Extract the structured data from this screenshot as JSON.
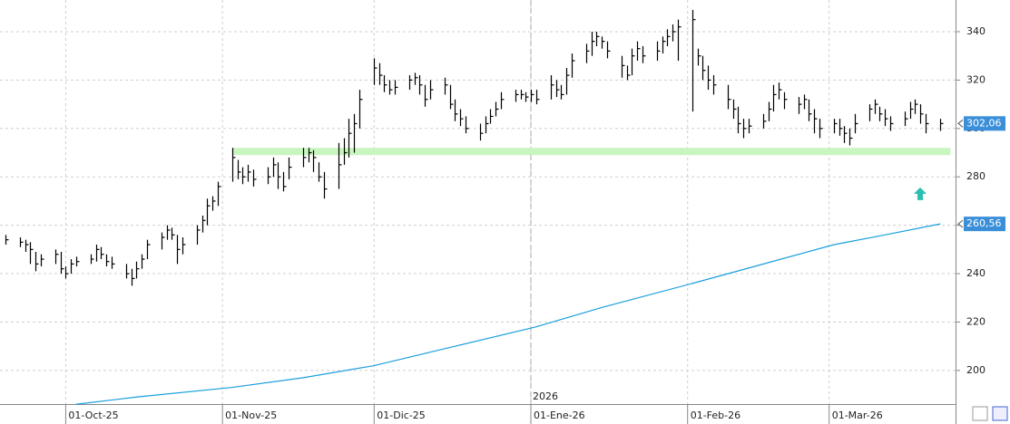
{
  "chart_data": {
    "type": "hlc",
    "xlim": [
      "2025-09-18",
      "2026-03-26"
    ],
    "ylim": [
      186.1,
      353.1
    ],
    "yticks": [
      200,
      220,
      240,
      260,
      280,
      300,
      320,
      340
    ],
    "grid": true,
    "xticks": [
      {
        "value": "2025-10-01",
        "label": "01-Oct-25"
      },
      {
        "value": "2025-11-01",
        "label": "01-Nov-25"
      },
      {
        "value": "2025-12-01",
        "label": "01-Dic-25"
      },
      {
        "value": "2026-01-01",
        "label": "01-Ene-26"
      },
      {
        "value": "2026-02-01",
        "label": "01-Feb-26"
      },
      {
        "value": "2026-03-01",
        "label": "01-Mar-26"
      }
    ],
    "year_marker": {
      "x": "2026-01-01",
      "label": "2026"
    },
    "band": {
      "from": "2025-11-03",
      "to": "2026-03-25",
      "low": 289,
      "high": 292,
      "color": "#c8f5c0"
    },
    "arrow": {
      "x": "2026-03-19",
      "y": 273,
      "color": "#2bbfb0"
    },
    "x": [
      "2025-09-19",
      "2025-09-22",
      "2025-09-23",
      "2025-09-24",
      "2025-09-25",
      "2025-09-26",
      "2025-09-29",
      "2025-09-30",
      "2025-10-01",
      "2025-10-02",
      "2025-10-03",
      "2025-10-06",
      "2025-10-07",
      "2025-10-08",
      "2025-10-09",
      "2025-10-10",
      "2025-10-13",
      "2025-10-14",
      "2025-10-15",
      "2025-10-16",
      "2025-10-17",
      "2025-10-20",
      "2025-10-21",
      "2025-10-22",
      "2025-10-23",
      "2025-10-24",
      "2025-10-27",
      "2025-10-28",
      "2025-10-29",
      "2025-10-30",
      "2025-10-31",
      "2025-11-03",
      "2025-11-04",
      "2025-11-05",
      "2025-11-06",
      "2025-11-07",
      "2025-11-10",
      "2025-11-11",
      "2025-11-12",
      "2025-11-13",
      "2025-11-14",
      "2025-11-17",
      "2025-11-18",
      "2025-11-19",
      "2025-11-20",
      "2025-11-21",
      "2025-11-24",
      "2025-11-25",
      "2025-11-26",
      "2025-11-27",
      "2025-11-28",
      "2025-12-01",
      "2025-12-02",
      "2025-12-03",
      "2025-12-04",
      "2025-12-05",
      "2025-12-08",
      "2025-12-09",
      "2025-12-10",
      "2025-12-11",
      "2025-12-12",
      "2025-12-15",
      "2025-12-16",
      "2025-12-17",
      "2025-12-18",
      "2025-12-19",
      "2025-12-22",
      "2025-12-23",
      "2025-12-24",
      "2025-12-25",
      "2025-12-26",
      "2025-12-29",
      "2025-12-30",
      "2025-12-31",
      "2026-01-01",
      "2026-01-02",
      "2026-01-05",
      "2026-01-06",
      "2026-01-07",
      "2026-01-08",
      "2026-01-09",
      "2026-01-12",
      "2026-01-13",
      "2026-01-14",
      "2026-01-15",
      "2026-01-16",
      "2026-01-19",
      "2026-01-20",
      "2026-01-21",
      "2026-01-22",
      "2026-01-23",
      "2026-01-26",
      "2026-01-27",
      "2026-01-28",
      "2026-01-29",
      "2026-01-30",
      "2026-02-02",
      "2026-02-03",
      "2026-02-04",
      "2026-02-05",
      "2026-02-06",
      "2026-02-09",
      "2026-02-10",
      "2026-02-11",
      "2026-02-12",
      "2026-02-13",
      "2026-02-16",
      "2026-02-17",
      "2026-02-18",
      "2026-02-19",
      "2026-02-20",
      "2026-02-23",
      "2026-02-24",
      "2026-02-25",
      "2026-02-26",
      "2026-02-27",
      "2026-03-02",
      "2026-03-03",
      "2026-03-04",
      "2026-03-05",
      "2026-03-06",
      "2026-03-09",
      "2026-03-10",
      "2026-03-11",
      "2026-03-12",
      "2026-03-13",
      "2026-03-16",
      "2026-03-17",
      "2026-03-18",
      "2026-03-19",
      "2026-03-20",
      "2026-03-23"
    ],
    "series": [
      {
        "kind": "hlc",
        "color": "#000000",
        "last_label": "302,06",
        "label_color": "#3a8fd8",
        "high": [
          256,
          255,
          254,
          253,
          249,
          248,
          250,
          249,
          243,
          246,
          247,
          248,
          252,
          251,
          248,
          247,
          244,
          242,
          245,
          248,
          254,
          257,
          260,
          259,
          256,
          255,
          260,
          264,
          271,
          272,
          278,
          292,
          287,
          284,
          285,
          283,
          284,
          288,
          286,
          282,
          288,
          292,
          292,
          291,
          286,
          282,
          294,
          296,
          304,
          306,
          316,
          329,
          327,
          322,
          320,
          320,
          322,
          323,
          322,
          318,
          320,
          321,
          318,
          312,
          308,
          305,
          302,
          305,
          308,
          311,
          315,
          316,
          316,
          315,
          316,
          316,
          322,
          320,
          318,
          325,
          331,
          335,
          340,
          340,
          338,
          336,
          330,
          326,
          333,
          336,
          334,
          336,
          338,
          341,
          343,
          345,
          349,
          333,
          330,
          326,
          322,
          318,
          312,
          309,
          304,
          304,
          306,
          311,
          318,
          319,
          315,
          313,
          314,
          312,
          308,
          304,
          304,
          304,
          301,
          300,
          306,
          310,
          312,
          309,
          308,
          305,
          307,
          311,
          312,
          310,
          306,
          304
        ],
        "low": [
          252,
          251,
          249,
          244,
          241,
          243,
          244,
          240,
          238,
          240,
          243,
          244,
          245,
          246,
          243,
          242,
          238,
          235,
          238,
          242,
          246,
          250,
          254,
          254,
          244,
          248,
          252,
          257,
          260,
          266,
          268,
          278,
          279,
          277,
          278,
          276,
          277,
          280,
          275,
          274,
          279,
          284,
          286,
          282,
          278,
          271,
          275,
          285,
          288,
          290,
          300,
          318,
          318,
          315,
          314,
          314,
          316,
          318,
          314,
          309,
          312,
          314,
          308,
          303,
          301,
          298,
          295,
          298,
          302,
          305,
          308,
          311,
          312,
          311,
          311,
          310,
          312,
          313,
          312,
          314,
          321,
          327,
          330,
          334,
          333,
          329,
          321,
          320,
          322,
          328,
          327,
          328,
          331,
          334,
          336,
          328,
          307,
          326,
          320,
          316,
          314,
          308,
          304,
          298,
          296,
          298,
          300,
          303,
          307,
          312,
          308,
          306,
          308,
          303,
          298,
          296,
          298,
          297,
          294,
          293,
          298,
          303,
          306,
          303,
          301,
          299,
          301,
          304,
          306,
          302,
          298,
          299
        ],
        "close": [
          254,
          253,
          252,
          250,
          244,
          246,
          248,
          242,
          240,
          244,
          245,
          246,
          250,
          248,
          245,
          244,
          240,
          238,
          242,
          246,
          252,
          255,
          258,
          256,
          250,
          252,
          258,
          262,
          268,
          270,
          276,
          288,
          282,
          280,
          282,
          279,
          280,
          285,
          280,
          276,
          284,
          288,
          290,
          288,
          280,
          275,
          285,
          290,
          298,
          302,
          312,
          325,
          322,
          318,
          316,
          317,
          320,
          321,
          318,
          312,
          316,
          318,
          310,
          306,
          304,
          300,
          298,
          302,
          305,
          308,
          312,
          314,
          314,
          313,
          314,
          312,
          318,
          316,
          314,
          322,
          328,
          332,
          336,
          338,
          336,
          332,
          326,
          322,
          330,
          333,
          330,
          332,
          336,
          338,
          340,
          342,
          345,
          330,
          324,
          320,
          318,
          312,
          308,
          302,
          300,
          301,
          303,
          308,
          314,
          316,
          312,
          310,
          312,
          306,
          304,
          300,
          302,
          300,
          298,
          296,
          302,
          308,
          310,
          306,
          304,
          302,
          304,
          308,
          310,
          306,
          302,
          302.06
        ]
      },
      {
        "kind": "line",
        "color": "#1a9fdc",
        "last_label": "260,56",
        "label_color": "#3a8fd8",
        "x": [
          "2025-10-03",
          "2025-10-15",
          "2025-11-03",
          "2025-11-17",
          "2025-12-01",
          "2025-12-15",
          "2026-01-02",
          "2026-01-15",
          "2026-02-02",
          "2026-02-16",
          "2026-03-02",
          "2026-03-12",
          "2026-03-23"
        ],
        "values": [
          186,
          189,
          193,
          197,
          202,
          209,
          218,
          226,
          236,
          244,
          252,
          256,
          260.56
        ]
      }
    ]
  }
}
